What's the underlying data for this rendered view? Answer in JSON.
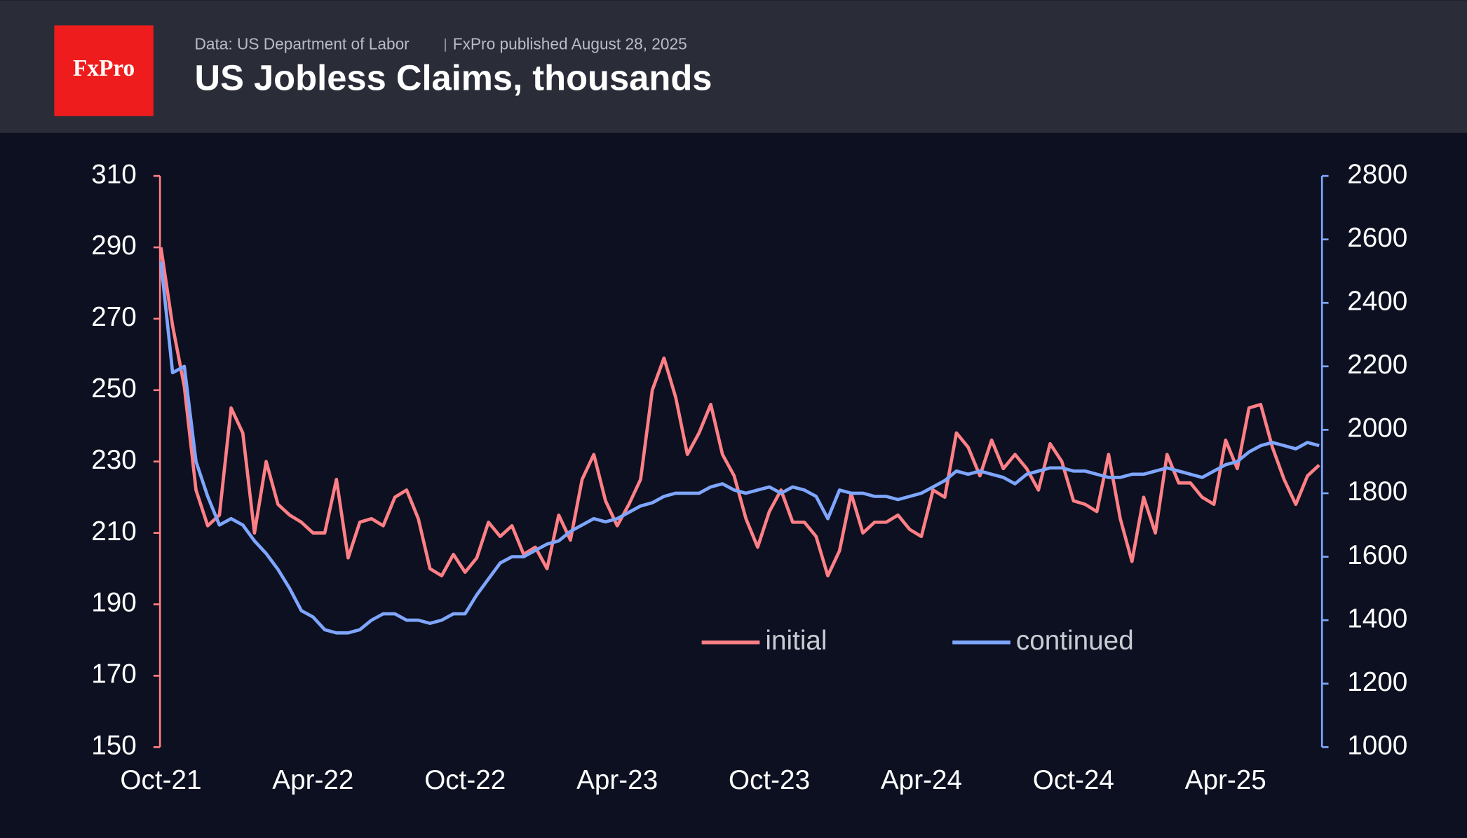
{
  "header": {
    "logo": "FxPro",
    "source": "Data: US Department of Labor",
    "published": "FxPro published August 28, 2025"
  },
  "chart_data": {
    "type": "line",
    "title": "US Jobless Claims, thousands",
    "categories": [
      "Oct-21",
      null,
      null,
      null,
      null,
      null,
      null,
      null,
      null,
      null,
      null,
      null,
      null,
      "Apr-22",
      null,
      null,
      null,
      null,
      null,
      null,
      null,
      null,
      null,
      null,
      null,
      null,
      "Oct-22",
      null,
      null,
      null,
      null,
      null,
      null,
      null,
      null,
      null,
      null,
      null,
      null,
      "Apr-23",
      null,
      null,
      null,
      null,
      null,
      null,
      null,
      null,
      null,
      null,
      null,
      null,
      "Oct-23",
      null,
      null,
      null,
      null,
      null,
      null,
      null,
      null,
      null,
      null,
      null,
      null,
      "Apr-24",
      null,
      null,
      null,
      null,
      null,
      null,
      null,
      null,
      null,
      null,
      null,
      null,
      "Oct-24",
      null,
      null,
      null,
      null,
      null,
      null,
      null,
      null,
      null,
      null,
      null,
      null,
      "Apr-25",
      null,
      null,
      null,
      null,
      null,
      null,
      null,
      null
    ],
    "series": [
      {
        "name": "initial",
        "color": "#ff7f86",
        "values": [
          290,
          268,
          251,
          222,
          212,
          215,
          245,
          238,
          210,
          230,
          218,
          215,
          213,
          210,
          210,
          225,
          203,
          213,
          214,
          212,
          220,
          222,
          214,
          200,
          198,
          204,
          199,
          203,
          213,
          209,
          212,
          204,
          206,
          200,
          215,
          208,
          225,
          232,
          219,
          212,
          218,
          225,
          250,
          259,
          248,
          232,
          238,
          246,
          232,
          226,
          214,
          206,
          216,
          222,
          213,
          213,
          209,
          198,
          205,
          221,
          210,
          213,
          213,
          215,
          211,
          209,
          222,
          220,
          238,
          234,
          226,
          236,
          228,
          232,
          228,
          222,
          235,
          230,
          219,
          218,
          216,
          232,
          214,
          202,
          220,
          210,
          232,
          224,
          224,
          220,
          218,
          236,
          228,
          245,
          246,
          234,
          225,
          218,
          226,
          229
        ]
      },
      {
        "name": "continued",
        "color": "#7fa6ff",
        "axis": "y2",
        "values": [
          2530,
          2180,
          2200,
          1900,
          1790,
          1700,
          1720,
          1700,
          1650,
          1610,
          1560,
          1500,
          1430,
          1410,
          1370,
          1360,
          1360,
          1370,
          1400,
          1420,
          1420,
          1400,
          1400,
          1390,
          1400,
          1420,
          1420,
          1480,
          1530,
          1580,
          1600,
          1600,
          1620,
          1640,
          1650,
          1680,
          1700,
          1720,
          1710,
          1720,
          1740,
          1760,
          1770,
          1790,
          1800,
          1800,
          1800,
          1820,
          1830,
          1810,
          1800,
          1810,
          1820,
          1800,
          1820,
          1810,
          1790,
          1720,
          1810,
          1800,
          1800,
          1790,
          1790,
          1780,
          1790,
          1800,
          1820,
          1840,
          1870,
          1860,
          1870,
          1860,
          1850,
          1830,
          1860,
          1870,
          1880,
          1880,
          1870,
          1870,
          1860,
          1850,
          1850,
          1860,
          1860,
          1870,
          1880,
          1870,
          1860,
          1850,
          1870,
          1890,
          1900,
          1930,
          1950,
          1960,
          1950,
          1940,
          1960,
          1950
        ]
      }
    ],
    "ylim": [
      150,
      310
    ],
    "yticks": [
      150,
      170,
      190,
      210,
      230,
      250,
      270,
      290,
      310
    ],
    "y2lim": [
      1000,
      2800
    ],
    "y2ticks": [
      1000,
      1200,
      1400,
      1600,
      1800,
      2000,
      2200,
      2400,
      2600,
      2800
    ],
    "legend": "lower center",
    "grid": false
  }
}
